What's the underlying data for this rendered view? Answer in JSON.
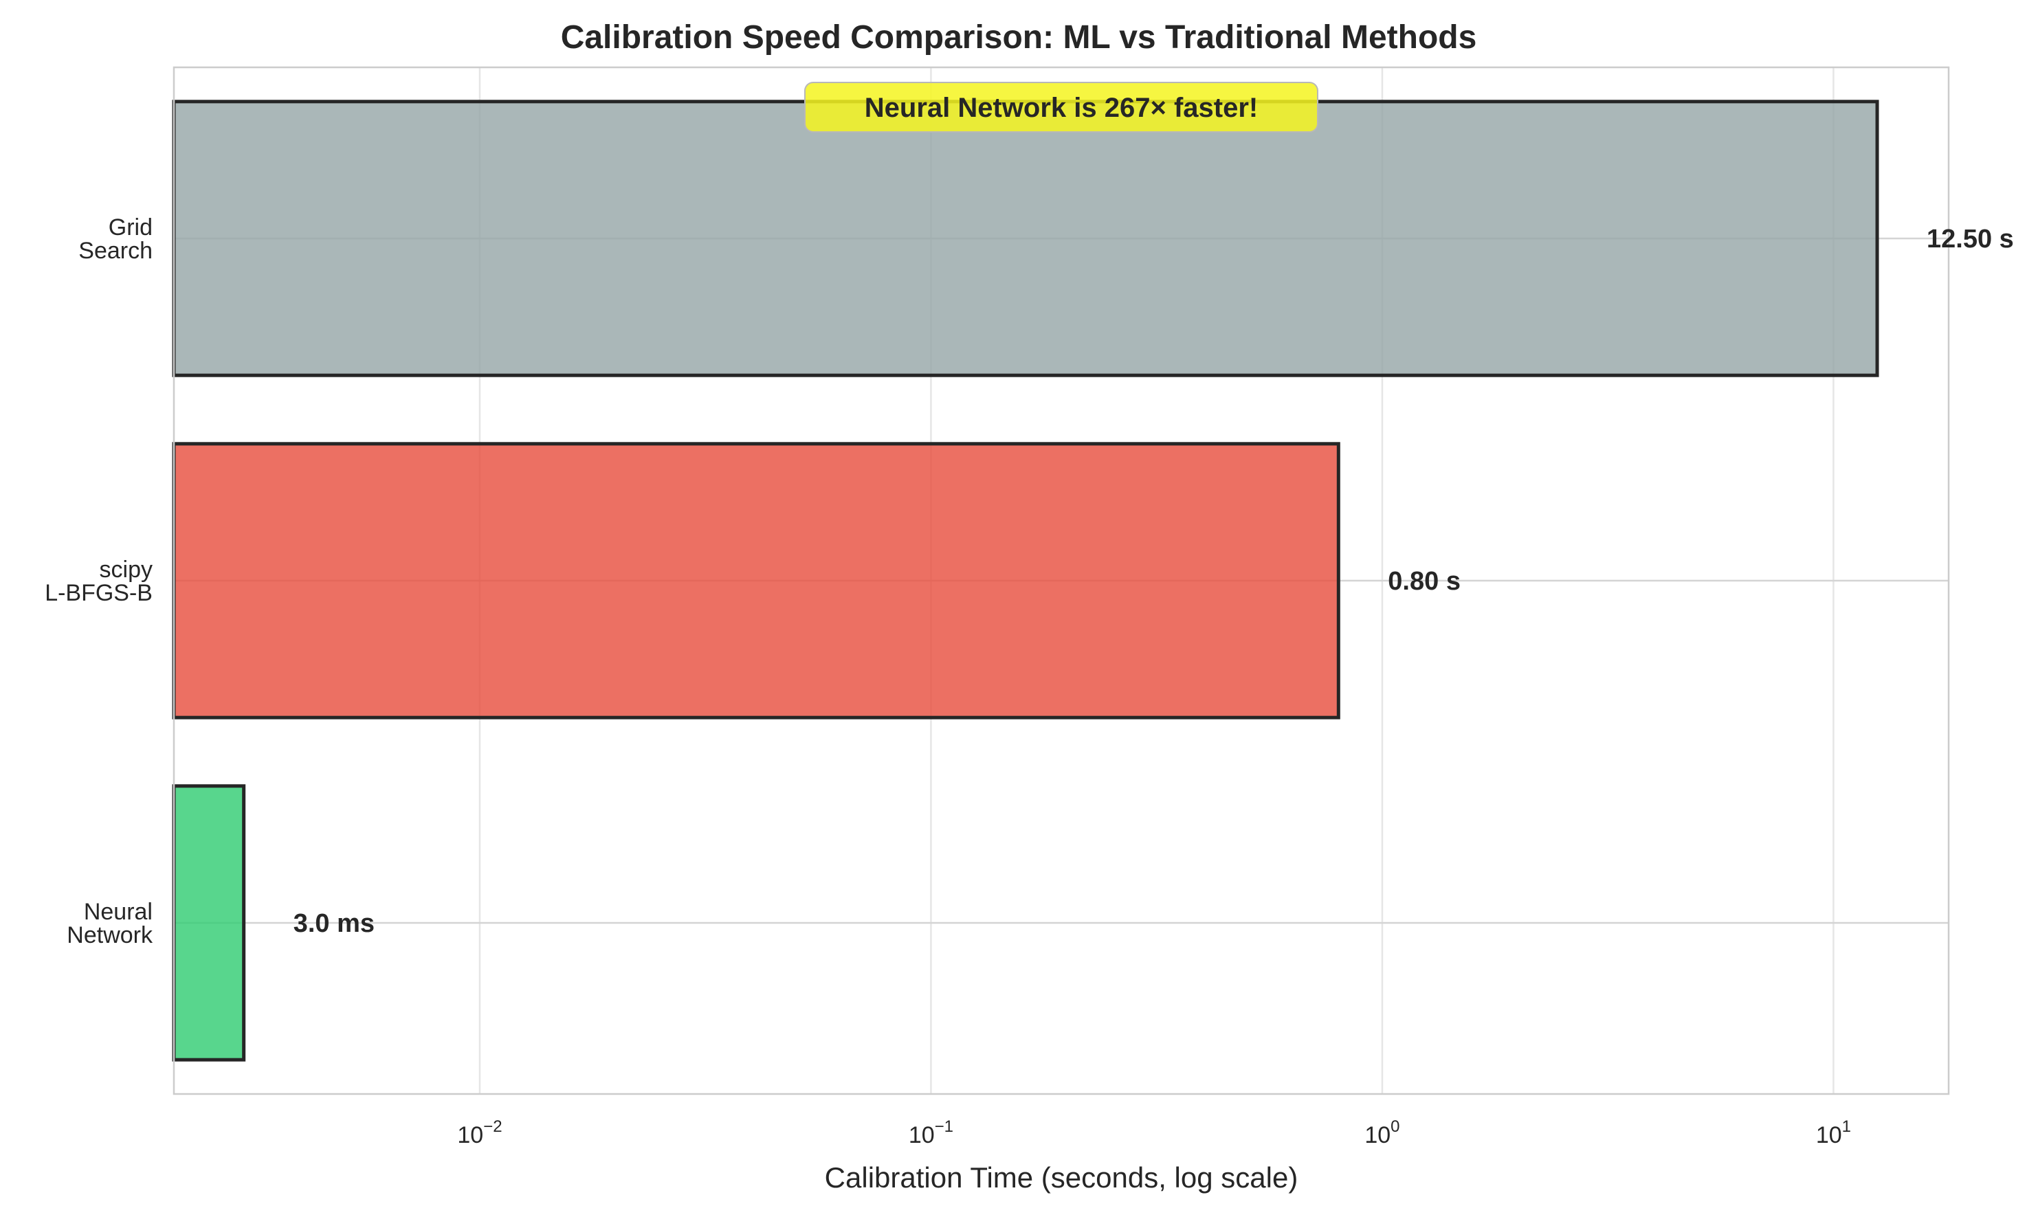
{
  "chart_data": {
    "type": "bar",
    "orientation": "horizontal",
    "title": "Calibration Speed Comparison: ML vs Traditional Methods",
    "xlabel": "Calibration Time (seconds, log scale)",
    "ylabel": "",
    "x_scale": "log",
    "xlim": [
      0.0021,
      18
    ],
    "x_ticks": [
      {
        "value": 0.01,
        "base": "10",
        "exp": "−2"
      },
      {
        "value": 0.1,
        "base": "10",
        "exp": "−1"
      },
      {
        "value": 1,
        "base": "10",
        "exp": "0"
      },
      {
        "value": 10,
        "base": "10",
        "exp": "1"
      }
    ],
    "grid": true,
    "categories": [
      {
        "lines": [
          "Grid",
          "Search"
        ],
        "value": 12.5,
        "label": "12.50 s",
        "color": "#95a5a6"
      },
      {
        "lines": [
          "scipy",
          "L-BFGS-B"
        ],
        "value": 0.8,
        "label": "0.80 s",
        "color": "#e74c3c"
      },
      {
        "lines": [
          "Neural",
          "Network"
        ],
        "value": 0.003,
        "label": "3.0 ms",
        "color": "#2ecc71"
      }
    ],
    "annotation": {
      "text": "Neural Network is 267× faster!",
      "background": "#f5f520",
      "position": "top-center"
    }
  }
}
